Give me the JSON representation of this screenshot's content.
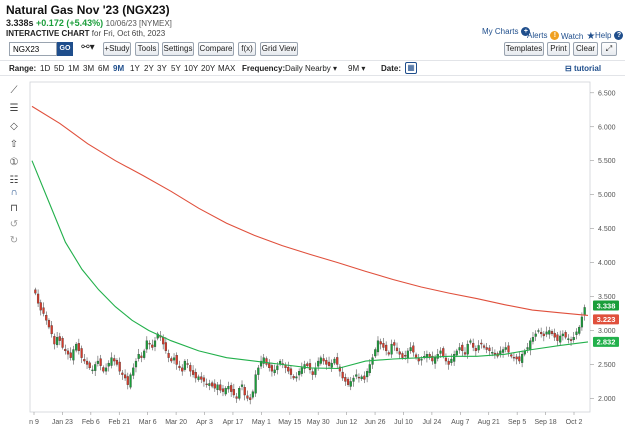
{
  "header": {
    "title": "Natural Gas Nov '23 (NGX23)",
    "last": "3.338s",
    "change": "+0.172 (+5.43%)",
    "meta": "10/06/23 [NYMEX]",
    "subtitle_bold": "INTERACTIVE CHART",
    "subtitle_rest": "for Fri, Oct 6th, 2023",
    "links": {
      "my_charts": "My Charts",
      "alerts": "Alerts",
      "watch": "Watch",
      "help": "Help"
    }
  },
  "toolbar": {
    "symbol": "NGX23",
    "go": "GO",
    "study": "+Study",
    "tools": "Tools",
    "settings": "Settings",
    "compare": "Compare",
    "fx": "f(x)",
    "grid_view": "Grid View",
    "templates": "Templates",
    "print": "Print",
    "clear": "Clear",
    "expand_icon": "expand-icon"
  },
  "range_bar": {
    "range_label": "Range:",
    "ranges": [
      "1D",
      "5D",
      "1M",
      "3M",
      "6M",
      "9M",
      "1Y",
      "2Y",
      "3Y",
      "5Y",
      "10Y",
      "20Y",
      "MAX"
    ],
    "selected_range": "9M",
    "frequency_label": "Frequency:",
    "frequency_value": "Daily Nearby",
    "period_value": "9M",
    "date_label": "Date:",
    "tutorial": "tutorial"
  },
  "colors": {
    "up": "#1a9e3a",
    "down": "#d63a2a",
    "ma_slow": "#e0503c",
    "ma_fast": "#22b04b",
    "link": "#1f4e8c"
  },
  "chart_data": {
    "type": "candlestick",
    "ylim": [
      1.8,
      6.6
    ],
    "yticks": [
      "6.500",
      "6.000",
      "5.500",
      "5.000",
      "4.500",
      "4.000",
      "3.500",
      "3.000",
      "2.500",
      "2.000"
    ],
    "ytick_values": [
      6.5,
      6.0,
      5.5,
      5.0,
      4.5,
      4.0,
      3.5,
      3.0,
      2.5,
      2.0
    ],
    "xticks": [
      "n 9",
      "Jan 23",
      "Feb 6",
      "Feb 21",
      "Mar 6",
      "Mar 20",
      "Apr 3",
      "Apr 17",
      "May 1",
      "May 15",
      "May 30",
      "Jun 12",
      "Jun 26",
      "Jul 10",
      "Jul 24",
      "Aug 7",
      "Aug 21",
      "Sep 5",
      "Sep 18",
      "Oct 2"
    ],
    "price_labels": [
      {
        "text": "3.338",
        "value": 3.338,
        "color": "#1a9e3a"
      },
      {
        "text": "3.223",
        "value": 3.223,
        "color": "#e0503c"
      },
      {
        "text": "2.832",
        "value": 2.832,
        "color": "#22b04b"
      }
    ],
    "closes": [
      3.55,
      3.4,
      3.3,
      3.25,
      3.15,
      3.05,
      2.95,
      2.8,
      2.9,
      2.85,
      2.75,
      2.7,
      2.65,
      2.6,
      2.72,
      2.8,
      2.7,
      2.6,
      2.55,
      2.5,
      2.45,
      2.42,
      2.5,
      2.55,
      2.48,
      2.4,
      2.45,
      2.52,
      2.6,
      2.55,
      2.5,
      2.4,
      2.35,
      2.3,
      2.2,
      2.35,
      2.45,
      2.55,
      2.65,
      2.6,
      2.7,
      2.85,
      2.8,
      2.75,
      2.85,
      2.95,
      2.9,
      2.8,
      2.7,
      2.6,
      2.55,
      2.6,
      2.5,
      2.45,
      2.4,
      2.55,
      2.5,
      2.4,
      2.35,
      2.3,
      2.32,
      2.28,
      2.25,
      2.2,
      2.22,
      2.18,
      2.15,
      2.2,
      2.12,
      2.1,
      2.15,
      2.18,
      2.1,
      2.05,
      2.0,
      2.15,
      2.2,
      2.05,
      2.0,
      1.98,
      2.1,
      2.35,
      2.45,
      2.55,
      2.6,
      2.5,
      2.45,
      2.4,
      2.42,
      2.48,
      2.55,
      2.5,
      2.45,
      2.4,
      2.35,
      2.3,
      2.32,
      2.4,
      2.45,
      2.5,
      2.48,
      2.42,
      2.35,
      2.45,
      2.55,
      2.6,
      2.55,
      2.5,
      2.48,
      2.52,
      2.58,
      2.5,
      2.4,
      2.3,
      2.25,
      2.2,
      2.25,
      2.3,
      2.35,
      2.3,
      2.32,
      2.28,
      2.4,
      2.5,
      2.6,
      2.72,
      2.85,
      2.8,
      2.75,
      2.7,
      2.65,
      2.8,
      2.78,
      2.7,
      2.65,
      2.6,
      2.62,
      2.7,
      2.75,
      2.68,
      2.6,
      2.55,
      2.58,
      2.62,
      2.65,
      2.6,
      2.55,
      2.6,
      2.65,
      2.7,
      2.62,
      2.55,
      2.5,
      2.58,
      2.65,
      2.7,
      2.75,
      2.7,
      2.65,
      2.8,
      2.85,
      2.75,
      2.7,
      2.78,
      2.8,
      2.75,
      2.72,
      2.7,
      2.68,
      2.65,
      2.62,
      2.7,
      2.72,
      2.75,
      2.68,
      2.62,
      2.6,
      2.58,
      2.55,
      2.65,
      2.7,
      2.75,
      2.85,
      2.9,
      2.95,
      3.0,
      2.95,
      2.92,
      2.98,
      3.0,
      2.95,
      2.9,
      2.85,
      2.92,
      2.95,
      2.9,
      2.88,
      2.85,
      2.9,
      2.98,
      3.05,
      3.2,
      3.34
    ],
    "ma_slow": [
      [
        0,
        6.3
      ],
      [
        0.05,
        6.05
      ],
      [
        0.1,
        5.75
      ],
      [
        0.15,
        5.5
      ],
      [
        0.2,
        5.28
      ],
      [
        0.25,
        5.05
      ],
      [
        0.3,
        4.8
      ],
      [
        0.35,
        4.58
      ],
      [
        0.4,
        4.4
      ],
      [
        0.45,
        4.25
      ],
      [
        0.5,
        4.12
      ],
      [
        0.55,
        4.0
      ],
      [
        0.6,
        3.87
      ],
      [
        0.65,
        3.75
      ],
      [
        0.7,
        3.64
      ],
      [
        0.75,
        3.55
      ],
      [
        0.8,
        3.47
      ],
      [
        0.85,
        3.38
      ],
      [
        0.9,
        3.3
      ],
      [
        0.95,
        3.26
      ],
      [
        1.0,
        3.223
      ]
    ],
    "ma_fast": [
      [
        0,
        5.5
      ],
      [
        0.03,
        4.9
      ],
      [
        0.06,
        4.3
      ],
      [
        0.09,
        3.9
      ],
      [
        0.12,
        3.6
      ],
      [
        0.15,
        3.35
      ],
      [
        0.18,
        3.15
      ],
      [
        0.21,
        3.0
      ],
      [
        0.25,
        2.85
      ],
      [
        0.3,
        2.7
      ],
      [
        0.35,
        2.6
      ],
      [
        0.4,
        2.55
      ],
      [
        0.45,
        2.5
      ],
      [
        0.5,
        2.45
      ],
      [
        0.55,
        2.44
      ],
      [
        0.6,
        2.55
      ],
      [
        0.65,
        2.58
      ],
      [
        0.7,
        2.6
      ],
      [
        0.75,
        2.62
      ],
      [
        0.8,
        2.62
      ],
      [
        0.85,
        2.65
      ],
      [
        0.9,
        2.72
      ],
      [
        0.95,
        2.78
      ],
      [
        1.0,
        2.832
      ]
    ]
  },
  "side_tools": [
    "line-tool-icon",
    "fibonacci-icon",
    "shapes-icon",
    "arrow-icon",
    "number-annotation-icon",
    "text-tool-icon",
    "magnet-icon",
    "lock-icon",
    "undo-icon",
    "redo-icon"
  ]
}
